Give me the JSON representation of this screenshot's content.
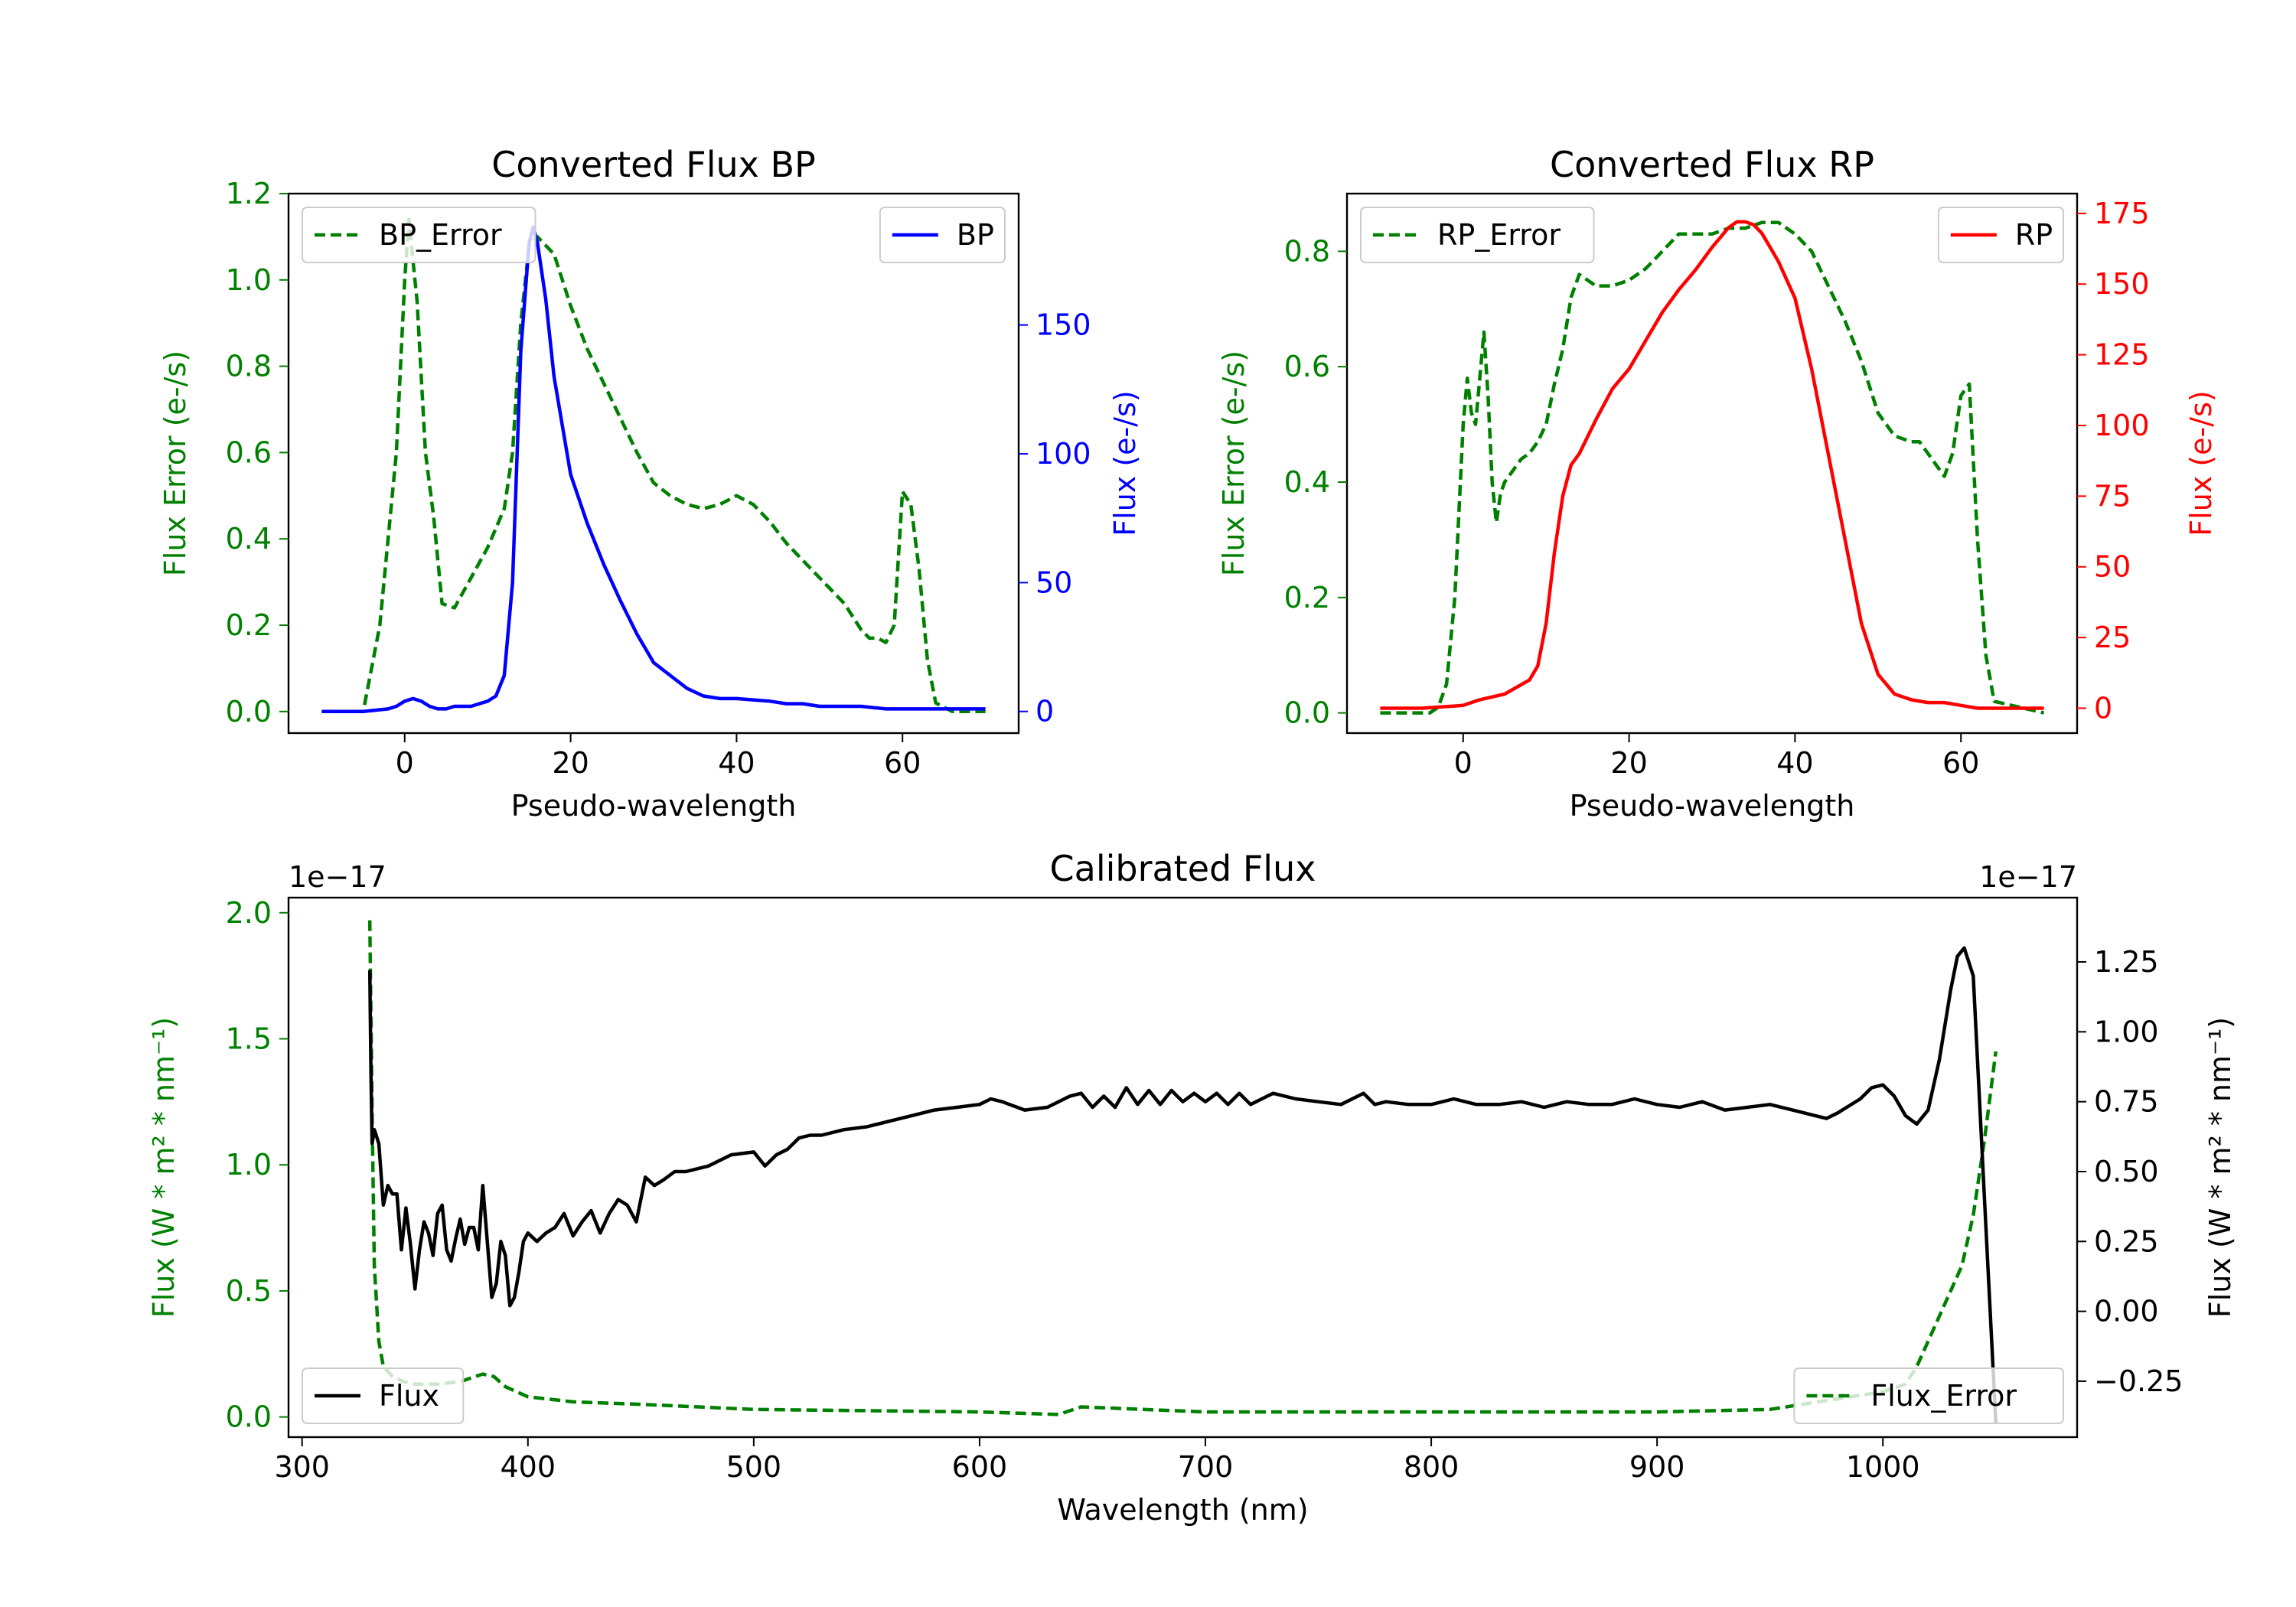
{
  "colors": {
    "error": "#008000",
    "bp": "#0000ff",
    "rp": "#ff0000",
    "flux": "#000000"
  },
  "chart_data": [
    {
      "type": "line",
      "id": "bp",
      "title": "Converted Flux BP",
      "xlabel": "Pseudo-wavelength",
      "ylabel_left": "Flux Error (e-/s)",
      "ylabel_right": "Flux (e-/s)",
      "xlim": [
        -14,
        74
      ],
      "ylim_left": [
        -0.05,
        1.2
      ],
      "ylim_right": [
        -8.4,
        201
      ],
      "xticks": [
        0,
        20,
        40,
        60
      ],
      "xtick_labels": [
        "0",
        "20",
        "40",
        "60"
      ],
      "yticks_left": [
        0.0,
        0.2,
        0.4,
        0.6,
        0.8,
        1.0,
        1.2
      ],
      "ytick_labels_left": [
        "0.0",
        "0.2",
        "0.4",
        "0.6",
        "0.8",
        "1.0",
        "1.2"
      ],
      "yticks_right": [
        0,
        50,
        100,
        150
      ],
      "ytick_labels_right": [
        "0",
        "50",
        "100",
        "150"
      ],
      "legend_left": {
        "label": "BP_Error",
        "position": "upper left"
      },
      "legend_right": {
        "label": "BP",
        "position": "upper right"
      },
      "series": [
        {
          "name": "BP_Error",
          "axis": "left",
          "style": "dashed",
          "color": "#008000",
          "x": [
            -10,
            -5,
            -3,
            -1,
            0,
            0.5,
            1.5,
            2.5,
            3.5,
            4.5,
            6,
            8,
            10,
            12,
            13,
            14,
            15,
            16,
            18,
            20,
            22,
            24,
            26,
            28,
            30,
            32,
            34,
            36,
            38,
            40,
            42,
            44,
            46,
            48,
            50,
            52,
            53,
            55,
            56,
            57,
            58,
            59,
            60,
            61,
            62,
            63,
            64,
            66,
            70
          ],
          "y": [
            0.0,
            0.0,
            0.2,
            0.6,
            1.0,
            1.14,
            0.95,
            0.6,
            0.45,
            0.25,
            0.24,
            0.31,
            0.38,
            0.47,
            0.6,
            0.9,
            1.08,
            1.1,
            1.06,
            0.94,
            0.84,
            0.76,
            0.68,
            0.6,
            0.53,
            0.5,
            0.48,
            0.47,
            0.48,
            0.5,
            0.48,
            0.44,
            0.39,
            0.35,
            0.31,
            0.27,
            0.25,
            0.19,
            0.17,
            0.17,
            0.16,
            0.2,
            0.51,
            0.48,
            0.33,
            0.12,
            0.02,
            0.0,
            0.0
          ]
        },
        {
          "name": "BP",
          "axis": "right",
          "style": "solid",
          "color": "#0000ff",
          "x": [
            -10,
            -5,
            -2,
            -1,
            0,
            1,
            2,
            3,
            4,
            5,
            6,
            7,
            8,
            9,
            10,
            11,
            12,
            13,
            14,
            15,
            15.5,
            16,
            17,
            18,
            20,
            22,
            24,
            26,
            28,
            30,
            32,
            34,
            36,
            38,
            40,
            42,
            44,
            46,
            48,
            50,
            52,
            55,
            58,
            60,
            62,
            65,
            70
          ],
          "y": [
            0,
            0,
            1,
            2,
            4,
            5,
            4,
            2,
            1,
            1,
            2,
            2,
            2,
            3,
            4,
            6,
            14,
            50,
            140,
            182,
            188,
            182,
            160,
            130,
            92,
            73,
            57,
            43,
            30,
            19,
            14,
            9,
            6,
            5,
            5,
            4.5,
            4,
            3,
            3,
            2,
            2,
            2,
            1,
            1,
            1,
            1,
            1
          ]
        }
      ]
    },
    {
      "type": "line",
      "id": "rp",
      "title": "Converted Flux RP",
      "xlabel": "Pseudo-wavelength",
      "ylabel_left": "Flux Error (e-/s)",
      "ylabel_right": "Flux (e-/s)",
      "xlim": [
        -14,
        74
      ],
      "ylim_left": [
        -0.035,
        0.9
      ],
      "ylim_right": [
        -8.8,
        182
      ],
      "xticks": [
        0,
        20,
        40,
        60
      ],
      "xtick_labels": [
        "0",
        "20",
        "40",
        "60"
      ],
      "yticks_left": [
        0.0,
        0.2,
        0.4,
        0.6,
        0.8
      ],
      "ytick_labels_left": [
        "0.0",
        "0.2",
        "0.4",
        "0.6",
        "0.8"
      ],
      "yticks_right": [
        0,
        25,
        50,
        75,
        100,
        125,
        150,
        175
      ],
      "ytick_labels_right": [
        "0",
        "25",
        "50",
        "75",
        "100",
        "125",
        "150",
        "175"
      ],
      "legend_left": {
        "label": "RP_Error",
        "position": "upper left"
      },
      "legend_right": {
        "label": "RP",
        "position": "upper right"
      },
      "series": [
        {
          "name": "RP_Error",
          "axis": "left",
          "style": "dashed",
          "color": "#008000",
          "x": [
            -10,
            -4,
            -3,
            -2,
            -1,
            0,
            0.5,
            1,
            1.5,
            2,
            2.5,
            3,
            3.5,
            4,
            4.5,
            5,
            6,
            7,
            8,
            9,
            10,
            11,
            12,
            13,
            14,
            15,
            16,
            18,
            20,
            22,
            24,
            26,
            28,
            30,
            32,
            34,
            36,
            38,
            40,
            42,
            44,
            46,
            48,
            50,
            52,
            54,
            55,
            56,
            57,
            58,
            59,
            60,
            61,
            62,
            63,
            64,
            70
          ],
          "y": [
            0.0,
            0.0,
            0.01,
            0.05,
            0.2,
            0.5,
            0.58,
            0.52,
            0.5,
            0.58,
            0.66,
            0.55,
            0.4,
            0.33,
            0.38,
            0.4,
            0.42,
            0.44,
            0.45,
            0.47,
            0.5,
            0.57,
            0.63,
            0.72,
            0.76,
            0.75,
            0.74,
            0.74,
            0.75,
            0.77,
            0.8,
            0.83,
            0.83,
            0.83,
            0.84,
            0.84,
            0.85,
            0.85,
            0.83,
            0.8,
            0.74,
            0.68,
            0.61,
            0.52,
            0.48,
            0.47,
            0.47,
            0.45,
            0.43,
            0.41,
            0.45,
            0.55,
            0.57,
            0.3,
            0.1,
            0.02,
            0.0
          ]
        },
        {
          "name": "RP",
          "axis": "right",
          "style": "solid",
          "color": "#ff0000",
          "x": [
            -10,
            -5,
            0,
            2,
            5,
            8,
            9,
            10,
            11,
            12,
            13,
            14,
            16,
            18,
            20,
            22,
            24,
            26,
            28,
            30,
            32,
            33,
            34,
            35,
            36,
            37,
            38,
            40,
            42,
            44,
            46,
            48,
            50,
            52,
            54,
            56,
            58,
            60,
            62,
            65,
            70
          ],
          "y": [
            0,
            0,
            1,
            3,
            5,
            10,
            15,
            30,
            55,
            75,
            86,
            90,
            102,
            113,
            120,
            130,
            140,
            148,
            155,
            163,
            170,
            172,
            172,
            171,
            168,
            163,
            158,
            145,
            120,
            90,
            60,
            30,
            12,
            5,
            3,
            2,
            2,
            1,
            0,
            0,
            0
          ]
        }
      ]
    },
    {
      "type": "line",
      "id": "calibrated",
      "title": "Calibrated Flux",
      "xlabel": "Wavelength (nm)",
      "ylabel_left": "Flux (W * m² * nm⁻¹)",
      "ylabel_right": "Flux (W * m² * nm⁻¹)",
      "offset_left": "1e−17",
      "offset_right": "1e−17",
      "xlim": [
        294,
        1086
      ],
      "ylim_left": [
        -0.08,
        2.06
      ],
      "ylim_right": [
        -0.45,
        1.48
      ],
      "xticks": [
        300,
        400,
        500,
        600,
        700,
        800,
        900,
        1000
      ],
      "xtick_labels": [
        "300",
        "400",
        "500",
        "600",
        "700",
        "800",
        "900",
        "1000"
      ],
      "yticks_left": [
        0.0,
        0.5,
        1.0,
        1.5,
        2.0
      ],
      "ytick_labels_left": [
        "0.0",
        "0.5",
        "1.0",
        "1.5",
        "2.0"
      ],
      "yticks_right": [
        -0.25,
        0.0,
        0.25,
        0.5,
        0.75,
        1.0,
        1.25
      ],
      "ytick_labels_right": [
        "−0.25",
        "0.00",
        "0.25",
        "0.50",
        "0.75",
        "1.00",
        "1.25"
      ],
      "legend_left": {
        "label": "Flux",
        "position": "lower left"
      },
      "legend_right": {
        "label": "Flux_Error",
        "position": "lower right"
      },
      "series": [
        {
          "name": "Flux_Error",
          "axis": "left",
          "style": "dashed",
          "color": "#008000",
          "x": [
            330,
            331,
            332,
            334,
            336,
            340,
            345,
            350,
            360,
            370,
            380,
            385,
            390,
            400,
            420,
            450,
            500,
            600,
            635,
            645,
            700,
            800,
            900,
            950,
            1000,
            1010,
            1015,
            1020,
            1025,
            1030,
            1035,
            1040,
            1045,
            1050
          ],
          "y": [
            1.97,
            1.2,
            0.6,
            0.3,
            0.2,
            0.16,
            0.14,
            0.13,
            0.13,
            0.14,
            0.17,
            0.16,
            0.12,
            0.08,
            0.06,
            0.05,
            0.03,
            0.02,
            0.01,
            0.04,
            0.02,
            0.02,
            0.02,
            0.03,
            0.1,
            0.13,
            0.2,
            0.3,
            0.4,
            0.5,
            0.6,
            0.8,
            1.1,
            1.45
          ]
        },
        {
          "name": "Flux",
          "axis": "right",
          "style": "solid",
          "color": "#000000",
          "x": [
            330,
            330.5,
            331,
            332,
            334,
            336,
            338,
            340,
            342,
            344,
            346,
            348,
            350,
            352,
            354,
            356,
            358,
            360,
            362,
            364,
            366,
            368,
            370,
            372,
            374,
            376,
            378,
            380,
            382,
            384,
            386,
            388,
            390,
            392,
            394,
            396,
            398,
            400,
            404,
            408,
            412,
            416,
            420,
            424,
            428,
            432,
            436,
            440,
            444,
            448,
            452,
            456,
            460,
            465,
            470,
            480,
            490,
            500,
            505,
            510,
            515,
            520,
            525,
            530,
            540,
            550,
            560,
            570,
            580,
            590,
            600,
            605,
            610,
            620,
            630,
            640,
            645,
            650,
            655,
            660,
            665,
            670,
            675,
            680,
            685,
            690,
            695,
            700,
            705,
            710,
            715,
            720,
            730,
            740,
            750,
            760,
            770,
            775,
            780,
            790,
            800,
            810,
            820,
            830,
            840,
            850,
            860,
            870,
            880,
            890,
            900,
            910,
            920,
            930,
            940,
            950,
            960,
            970,
            975,
            980,
            990,
            995,
            1000,
            1005,
            1010,
            1015,
            1020,
            1025,
            1030,
            1033,
            1036,
            1040,
            1045,
            1050
          ],
          "y": [
            1.22,
            0.85,
            0.6,
            0.65,
            0.6,
            0.38,
            0.45,
            0.42,
            0.42,
            0.22,
            0.37,
            0.24,
            0.08,
            0.22,
            0.32,
            0.28,
            0.2,
            0.35,
            0.38,
            0.22,
            0.18,
            0.26,
            0.33,
            0.24,
            0.3,
            0.3,
            0.22,
            0.45,
            0.25,
            0.05,
            0.1,
            0.25,
            0.2,
            0.02,
            0.05,
            0.14,
            0.25,
            0.28,
            0.25,
            0.28,
            0.3,
            0.35,
            0.27,
            0.32,
            0.36,
            0.28,
            0.35,
            0.4,
            0.38,
            0.32,
            0.48,
            0.45,
            0.47,
            0.5,
            0.5,
            0.52,
            0.56,
            0.57,
            0.52,
            0.56,
            0.58,
            0.62,
            0.63,
            0.63,
            0.65,
            0.66,
            0.68,
            0.7,
            0.72,
            0.73,
            0.74,
            0.76,
            0.75,
            0.72,
            0.73,
            0.77,
            0.78,
            0.73,
            0.77,
            0.73,
            0.8,
            0.74,
            0.79,
            0.74,
            0.79,
            0.75,
            0.78,
            0.75,
            0.78,
            0.74,
            0.78,
            0.74,
            0.78,
            0.76,
            0.75,
            0.74,
            0.78,
            0.74,
            0.75,
            0.74,
            0.74,
            0.76,
            0.74,
            0.74,
            0.75,
            0.73,
            0.75,
            0.74,
            0.74,
            0.76,
            0.74,
            0.73,
            0.75,
            0.72,
            0.73,
            0.74,
            0.72,
            0.7,
            0.69,
            0.71,
            0.76,
            0.8,
            0.81,
            0.77,
            0.7,
            0.67,
            0.72,
            0.9,
            1.15,
            1.27,
            1.3,
            1.2,
            0.4,
            -0.4
          ]
        }
      ]
    }
  ]
}
